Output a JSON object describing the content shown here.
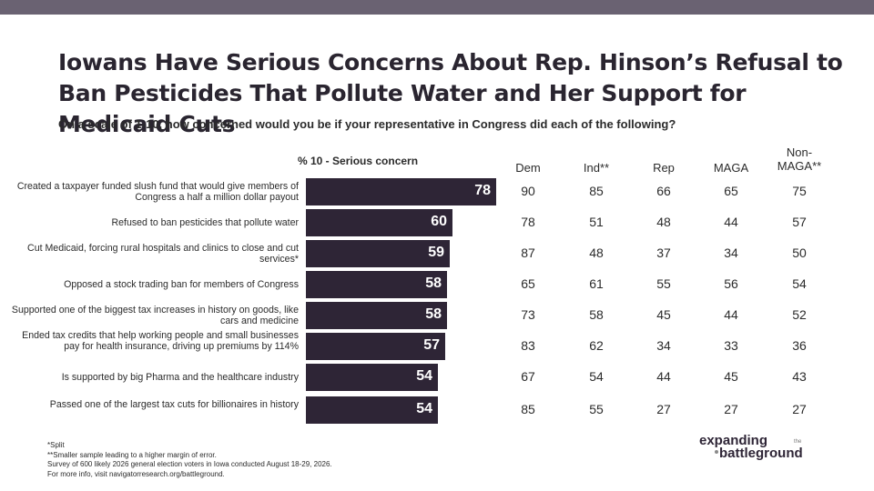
{
  "title": "Iowans Have Serious Concerns About Rep. Hinson’s Refusal to Ban Pesticides That Pollute Water and Her Support for Medicaid Cuts",
  "subtitle": "On a scale of 1-10, how concerned would you be if your representative in Congress did each of the following?",
  "bar_header": "% 10 - Serious concern",
  "columns": [
    "Dem",
    "Ind**",
    "Rep",
    "MAGA",
    "Non-\nMAGA**"
  ],
  "colors": {
    "bar": "#2e2536",
    "top_bar": "#6a6272",
    "bar_text": "#ffffff"
  },
  "chart_data": {
    "type": "bar",
    "orientation": "horizontal",
    "xlim": [
      0,
      100
    ],
    "categories": [
      "Created a taxpayer funded slush fund that would give members of Congress a half a million dollar payout",
      "Refused to ban pesticides that pollute water",
      "Cut Medicaid, forcing rural hospitals and clinics to close and cut services*",
      "Opposed a stock trading ban for members of Congress",
      "Supported one of the biggest tax increases in history on goods, like cars and medicine",
      "Ended tax credits that help working people and small businesses pay for health insurance, driving up premiums by 114%",
      "Is supported by big Pharma and the healthcare industry",
      "Passed one of the largest tax cuts for billionaires in history"
    ],
    "values": [
      78,
      60,
      59,
      58,
      58,
      57,
      54,
      54
    ],
    "table": {
      "columns": [
        "Dem",
        "Ind**",
        "Rep",
        "MAGA",
        "Non-MAGA**"
      ],
      "rows": [
        [
          90,
          85,
          66,
          65,
          75
        ],
        [
          78,
          51,
          48,
          44,
          57
        ],
        [
          87,
          48,
          37,
          34,
          50
        ],
        [
          65,
          61,
          55,
          56,
          54
        ],
        [
          73,
          58,
          45,
          44,
          52
        ],
        [
          83,
          62,
          34,
          33,
          36
        ],
        [
          67,
          54,
          44,
          45,
          43
        ],
        [
          85,
          55,
          27,
          27,
          27
        ]
      ]
    }
  },
  "footnotes": [
    "*Split",
    "**Smaller sample leading to a higher margin of error.",
    "Survey of 600 likely 2026 general election voters in Iowa conducted August 18-29, 2026.",
    "For more info, visit navigatorresearch.org/battleground."
  ],
  "logo": {
    "line1": "expanding",
    "small": "the",
    "line2": "battleground"
  }
}
